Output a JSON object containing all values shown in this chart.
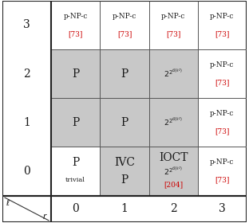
{
  "cells": {
    "3,0": {
      "lines": [
        "p-NP-c",
        "[73]"
      ],
      "gray": false,
      "red_indices": [
        1
      ]
    },
    "3,1": {
      "lines": [
        "p-NP-c",
        "[73]"
      ],
      "gray": false,
      "red_indices": [
        1
      ]
    },
    "3,2": {
      "lines": [
        "p-NP-c",
        "[73]"
      ],
      "gray": false,
      "red_indices": [
        1
      ]
    },
    "3,3": {
      "lines": [
        "p-NP-c",
        "[73]"
      ],
      "gray": false,
      "red_indices": [
        1
      ]
    },
    "2,0": {
      "lines": [
        "P"
      ],
      "gray": true,
      "red_indices": []
    },
    "2,1": {
      "lines": [
        "P"
      ],
      "gray": true,
      "red_indices": []
    },
    "2,2": {
      "lines": [
        "$2^{2^{\\mathcal{O}(k^2)}}$"
      ],
      "gray": true,
      "red_indices": []
    },
    "2,3": {
      "lines": [
        "p-NP-c",
        "[73]"
      ],
      "gray": false,
      "red_indices": [
        1
      ]
    },
    "1,0": {
      "lines": [
        "P"
      ],
      "gray": true,
      "red_indices": []
    },
    "1,1": {
      "lines": [
        "P"
      ],
      "gray": true,
      "red_indices": []
    },
    "1,2": {
      "lines": [
        "$2^{2^{\\mathcal{O}(k^2)}}$"
      ],
      "gray": true,
      "red_indices": []
    },
    "1,3": {
      "lines": [
        "p-NP-c",
        "[73]"
      ],
      "gray": false,
      "red_indices": [
        1
      ]
    },
    "0,0": {
      "lines": [
        "P",
        "trivial"
      ],
      "gray": false,
      "red_indices": []
    },
    "0,1": {
      "lines": [
        "IVC",
        "P"
      ],
      "gray": true,
      "red_indices": []
    },
    "0,2": {
      "lines": [
        "IOCT",
        "$2^{2^{\\mathcal{O}(k^2)}}$",
        "[204]"
      ],
      "gray": true,
      "red_indices": [
        2
      ]
    },
    "0,3": {
      "lines": [
        "p-NP-c",
        "[73]"
      ],
      "gray": false,
      "red_indices": [
        1
      ]
    }
  },
  "gray_color": "#c8c8c8",
  "red_color": "#cc0000",
  "black_color": "#1a1a1a",
  "bg_color": "#ffffff"
}
